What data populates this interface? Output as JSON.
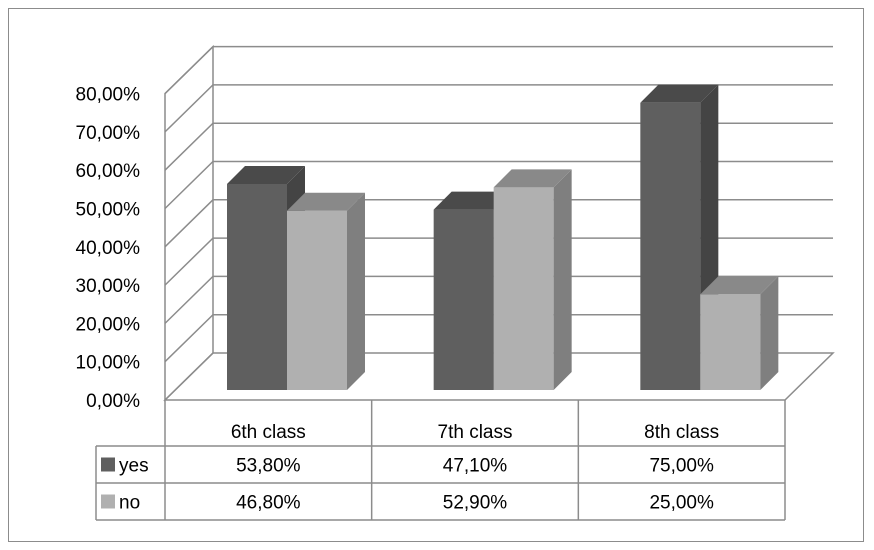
{
  "chart_data": {
    "type": "bar",
    "categories": [
      "6th class",
      "7th class",
      "8th class"
    ],
    "series": [
      {
        "name": "yes",
        "values": [
          53.8,
          47.1,
          75.0
        ],
        "labels": [
          "53,80%",
          "47,10%",
          "75,00%"
        ],
        "color": "#5f5f5f"
      },
      {
        "name": "no",
        "values": [
          46.8,
          52.9,
          25.0
        ],
        "labels": [
          "46,80%",
          "52,90%",
          "25,00%"
        ],
        "color": "#b0b0b0"
      }
    ],
    "yticks": [
      "0,00%",
      "10,00%",
      "20,00%",
      "30,00%",
      "40,00%",
      "50,00%",
      "60,00%",
      "70,00%",
      "80,00%"
    ],
    "ylim": [
      0,
      80
    ],
    "grid": true,
    "style": "3d-clustered-column-with-data-table",
    "title": "",
    "xlabel": "",
    "ylabel": ""
  }
}
